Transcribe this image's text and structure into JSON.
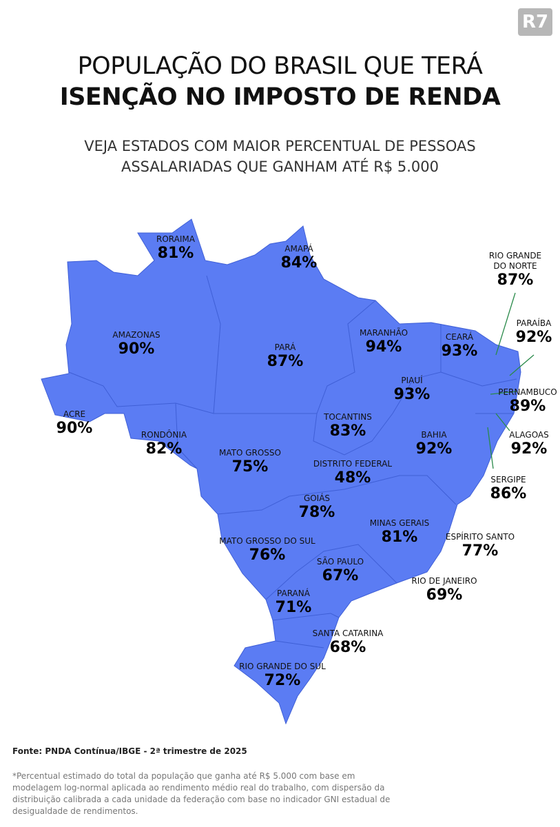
{
  "logo": "R7",
  "header": {
    "title_line1": "POPULAÇÃO DO BRASIL QUE TERÁ",
    "title_line2": "ISENÇÃO NO IMPOSTO DE RENDA",
    "subtitle_line1": "VEJA ESTADOS COM MAIOR PERCENTUAL DE PESSOAS",
    "subtitle_line2": "ASSALARIADAS QUE GANHAM ATÉ R$ 5.000"
  },
  "states": [
    {
      "name": "RORAIMA",
      "value": "81%"
    },
    {
      "name": "AMAPÁ",
      "value": "84%"
    },
    {
      "name": "RIO GRANDE DO NORTE",
      "value": "87%"
    },
    {
      "name": "AMAZONAS",
      "value": "90%"
    },
    {
      "name": "PARÁ",
      "value": "87%"
    },
    {
      "name": "MARANHÃO",
      "value": "94%"
    },
    {
      "name": "CEARÁ",
      "value": "93%"
    },
    {
      "name": "PARAÍBA",
      "value": "92%"
    },
    {
      "name": "ACRE",
      "value": "90%"
    },
    {
      "name": "PIAUÍ",
      "value": "93%"
    },
    {
      "name": "PERNAMBUCO",
      "value": "89%"
    },
    {
      "name": "TOCANTINS",
      "value": "83%"
    },
    {
      "name": "RONDÔNIA",
      "value": "82%"
    },
    {
      "name": "BAHIA",
      "value": "92%"
    },
    {
      "name": "ALAGOAS",
      "value": "92%"
    },
    {
      "name": "MATO GROSSO",
      "value": "75%"
    },
    {
      "name": "DISTRITO FEDERAL",
      "value": "48%"
    },
    {
      "name": "SERGIPE",
      "value": "86%"
    },
    {
      "name": "GOIÁS",
      "value": "78%"
    },
    {
      "name": "MINAS GERAIS",
      "value": "81%"
    },
    {
      "name": "ESPÍRITO SANTO",
      "value": "77%"
    },
    {
      "name": "MATO GROSSO DO SUL",
      "value": "76%"
    },
    {
      "name": "SÃO PAULO",
      "value": "67%"
    },
    {
      "name": "RIO DE JANEIRO",
      "value": "69%"
    },
    {
      "name": "PARANÁ",
      "value": "71%"
    },
    {
      "name": "SANTA CATARINA",
      "value": "68%"
    },
    {
      "name": "RIO GRANDE DO SUL",
      "value": "72%"
    }
  ],
  "footer": {
    "source": "Fonte: PNDA Contínua/IBGE - 2ª trimestre de 2025",
    "note": "*Percentual estimado do total da população que ganha até R$ 5.000 com base em modelagem log-normal aplicada ao rendimento médio real do trabalho, com dispersão da distribuição calibrada a cada unidade da federação com base no indicador GNI estadual de desigualdade de rendimentos."
  }
}
